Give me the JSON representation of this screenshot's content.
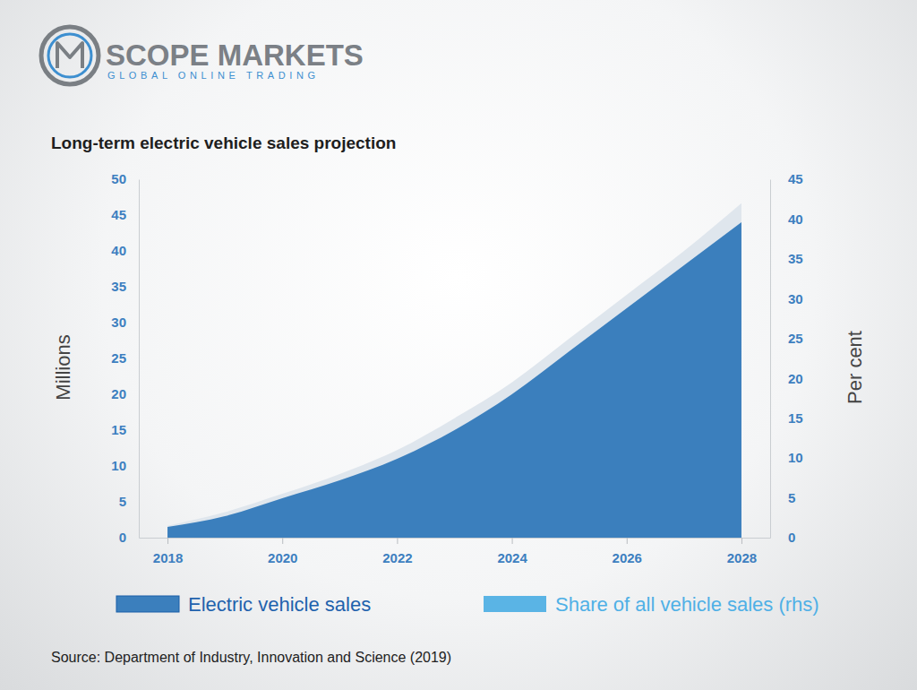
{
  "header": {
    "brand": "SCOPE MARKETS",
    "tagline": "GLOBAL ONLINE TRADING"
  },
  "chart_data": {
    "type": "area",
    "title": "Long-term electric vehicle sales projection",
    "x": [
      2018,
      2019,
      2020,
      2021,
      2022,
      2023,
      2024,
      2025,
      2026,
      2027,
      2028
    ],
    "xlim": [
      2017.5,
      2028.5
    ],
    "xticks": [
      2018,
      2020,
      2022,
      2024,
      2026,
      2028
    ],
    "ylim": [
      0,
      50
    ],
    "yticks": [
      0,
      5,
      10,
      15,
      20,
      25,
      30,
      35,
      40,
      45,
      50
    ],
    "y2lim": [
      0,
      45
    ],
    "y2ticks": [
      0,
      5,
      10,
      15,
      20,
      25,
      30,
      35,
      40,
      45
    ],
    "y_label": "Millions",
    "y2_label": "Per cent",
    "series": [
      {
        "name": "Electric vehicle sales",
        "color": "#3b7fbd",
        "values": [
          1.5,
          3,
          5.5,
          8,
          11,
          15,
          20,
          26,
          32,
          38,
          44
        ]
      },
      {
        "name": "Share of all vehicle sales (rhs)",
        "color": "#dfe6ed",
        "axis": "y2",
        "values": [
          1.5,
          3.2,
          5.5,
          8,
          11,
          15,
          19.5,
          25,
          30.5,
          36,
          42
        ]
      }
    ],
    "grid": false,
    "legend": "bottom",
    "source": "Source: Department of Industry, Innovation and Science (2019)"
  }
}
